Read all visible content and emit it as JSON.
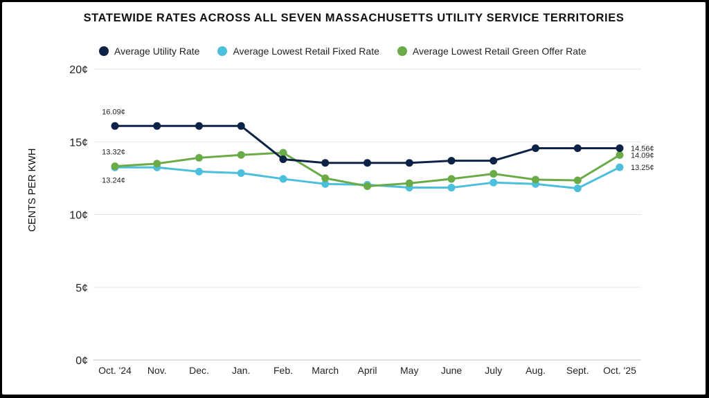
{
  "chart_data": {
    "type": "line",
    "title": "STATEWIDE RATES ACROSS ALL SEVEN MASSACHUSETTS UTILITY SERVICE TERRITORIES",
    "ylabel": "CENTS PER KWH",
    "xlabel": "",
    "ylim": [
      0,
      20
    ],
    "yticks": [
      0,
      5,
      10,
      15,
      20
    ],
    "ytick_labels": [
      "0¢",
      "5¢",
      "10¢",
      "15¢",
      "20¢"
    ],
    "categories": [
      "Oct. '24",
      "Nov.",
      "Dec.",
      "Jan.",
      "Feb.",
      "March",
      "April",
      "May",
      "June",
      "July",
      "Aug.",
      "Sept.",
      "Oct. '25"
    ],
    "series": [
      {
        "name": "Average Utility Rate",
        "color": "#0d2247",
        "values": [
          16.09,
          16.09,
          16.09,
          16.09,
          13.8,
          13.55,
          13.55,
          13.55,
          13.7,
          13.7,
          14.56,
          14.56,
          14.56
        ]
      },
      {
        "name": "Average Lowest Retail Fixed Rate",
        "color": "#4bbfdb",
        "values": [
          13.24,
          13.24,
          12.95,
          12.85,
          12.45,
          12.1,
          12.05,
          11.85,
          11.85,
          12.2,
          12.1,
          11.8,
          13.25
        ]
      },
      {
        "name": "Average Lowest Retail Green Offer Rate",
        "color": "#6aaa47",
        "values": [
          13.32,
          13.5,
          13.9,
          14.1,
          14.25,
          12.5,
          11.95,
          12.15,
          12.45,
          12.8,
          12.4,
          12.35,
          14.09
        ]
      }
    ],
    "annotations": [
      {
        "text": "16.09¢",
        "series": 0,
        "index": 0,
        "pos": "above"
      },
      {
        "text": "13.32¢",
        "series": 2,
        "index": 0,
        "pos": "above"
      },
      {
        "text": "13.24¢",
        "series": 1,
        "index": 0,
        "pos": "below"
      },
      {
        "text": "14.56¢",
        "series": 0,
        "index": 12,
        "pos": "right"
      },
      {
        "text": "14.09¢",
        "series": 2,
        "index": 12,
        "pos": "right"
      },
      {
        "text": "13.25¢",
        "series": 1,
        "index": 12,
        "pos": "right"
      }
    ]
  }
}
